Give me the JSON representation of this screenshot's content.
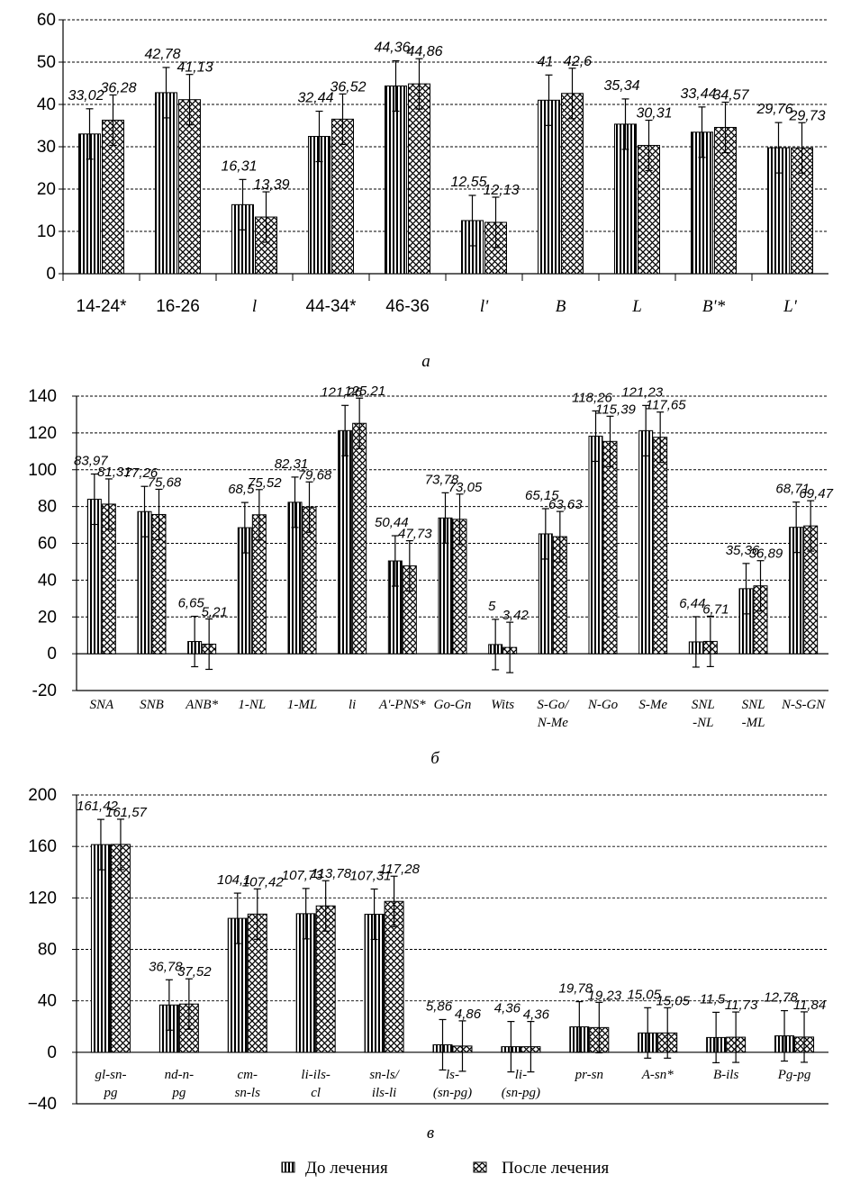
{
  "colors": {
    "bars": "#000000",
    "background": "#ffffff",
    "grid": "#000000"
  },
  "legend": {
    "before": "До лечения",
    "after": "После лечения"
  },
  "chart_data": [
    {
      "type": "bar",
      "caption": "а",
      "categories": [
        "14-24*",
        "16-26",
        "l",
        "44-34*",
        "46-36",
        "l'",
        "B",
        "L",
        "B'*",
        "L'"
      ],
      "series": [
        {
          "name": "До лечения",
          "values": [
            33.02,
            42.78,
            16.31,
            32.44,
            44.36,
            12.55,
            41,
            35.34,
            33.44,
            29.76
          ],
          "labels": [
            "33,02",
            "42,78",
            "16,31",
            "32,44",
            "44,36",
            "12,55",
            "41",
            "35,34",
            "33,44",
            "29,76"
          ]
        },
        {
          "name": "После лечения",
          "values": [
            36.28,
            41.13,
            13.39,
            36.52,
            44.86,
            12.13,
            42.6,
            30.31,
            34.57,
            29.73
          ],
          "labels": [
            "36,28",
            "41,13",
            "13,39",
            "36,52",
            "44,86",
            "12,13",
            "42,6",
            "30,31",
            "34,57",
            "29,73"
          ]
        }
      ],
      "error_bars": "shown",
      "ylim": [
        0,
        60
      ],
      "yticks": [
        "0",
        "10",
        "20",
        "30",
        "40",
        "50",
        "60"
      ],
      "grid": "horizontal dashed"
    },
    {
      "type": "bar",
      "caption": "б",
      "categories": [
        "SNA",
        "SNB",
        "ANB*",
        "1-NL",
        "1-ML",
        "li",
        "A'-PNS*",
        "Go-Gn",
        "Wits",
        "S-Go/ N-Me",
        "N-Go",
        "S-Me",
        "SNL -NL",
        "SNL -ML",
        "N-S-GN"
      ],
      "series": [
        {
          "name": "До лечения",
          "values": [
            83.97,
            77.26,
            6.65,
            68.5,
            82.31,
            121.26,
            50.44,
            73.78,
            5,
            65.15,
            118.26,
            121.23,
            6.44,
            35.36,
            68.71
          ],
          "labels": [
            "83,97",
            "77,26",
            "6,65",
            "68,5",
            "82,31",
            "121,26",
            "50,44",
            "73,78",
            "5",
            "65,15",
            "118,26",
            "121,23",
            "6,44",
            "35,36",
            "68,71"
          ]
        },
        {
          "name": "После лечения",
          "values": [
            81.31,
            75.68,
            5.21,
            75.52,
            79.68,
            125.21,
            47.73,
            73.05,
            3.42,
            63.63,
            115.39,
            117.65,
            6.71,
            36.89,
            69.47
          ],
          "labels": [
            "81,31",
            "75,68",
            "5,21",
            "75,52",
            "79,68",
            "125,21",
            "47,73",
            "73,05",
            "3,42",
            "63,63",
            "115,39",
            "117,65",
            "6,71",
            "36,89",
            "69,47"
          ]
        }
      ],
      "error_bars": "shown",
      "ylim": [
        -20,
        140
      ],
      "yticks": [
        "-20",
        "0",
        "20",
        "40",
        "60",
        "80",
        "100",
        "120",
        "140"
      ],
      "grid": "horizontal dashed"
    },
    {
      "type": "bar",
      "caption": "в",
      "categories": [
        "gl-sn- pg",
        "nd-n- pg",
        "cm- sn-ls",
        "li-ils- cl",
        "sn-ls/ ils-li",
        "ls- (sn-pg)",
        "li- (sn-pg)",
        "pr-sn",
        "A-sn*",
        "B-ils",
        "Pg-pg"
      ],
      "series": [
        {
          "name": "До лечения",
          "values": [
            161.42,
            36.78,
            104.1,
            107.73,
            107.31,
            5.86,
            4.36,
            19.78,
            15.05,
            11.5,
            12.78
          ],
          "labels": [
            "161,42",
            "36,78",
            "104,1",
            "107,73",
            "107,31",
            "5,86",
            "4,36",
            "19,78",
            "15,05",
            "11,5",
            "12,78"
          ]
        },
        {
          "name": "После лечения",
          "values": [
            161.57,
            37.52,
            107.42,
            113.78,
            117.28,
            4.86,
            4.36,
            19.23,
            15.05,
            11.73,
            11.84
          ],
          "labels": [
            "161,57",
            "37,52",
            "107,42",
            "113,78",
            "117,28",
            "4,86",
            "4,36",
            "19,23",
            "15,05",
            "11,73",
            "11,84"
          ]
        }
      ],
      "error_bars": "shown",
      "ylim": [
        -40,
        200
      ],
      "yticks": [
        "−40",
        "0",
        "40",
        "80",
        "120",
        "160",
        "200"
      ],
      "grid": "horizontal dashed"
    }
  ]
}
